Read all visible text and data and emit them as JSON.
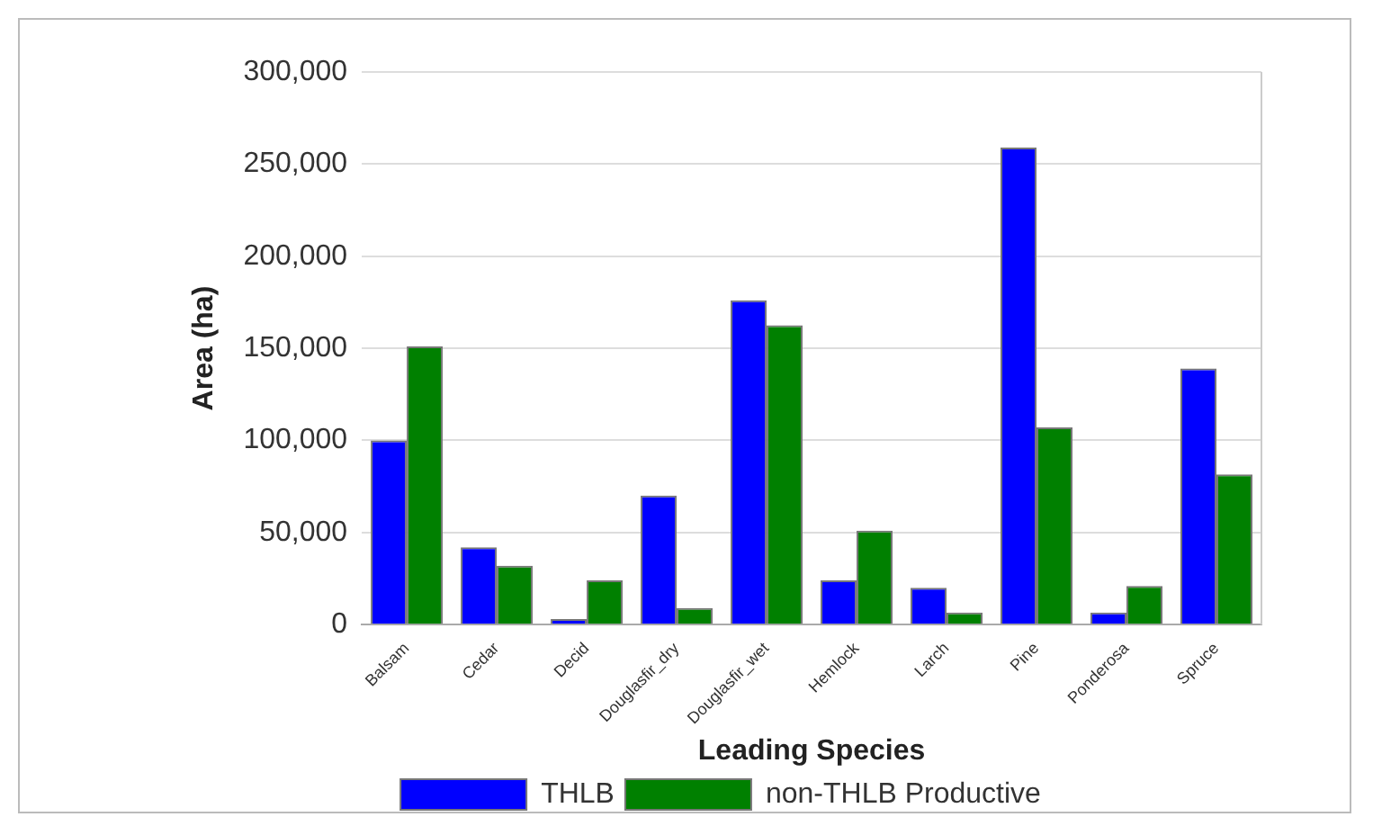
{
  "chart_data": {
    "type": "bar",
    "xlabel": "Leading Species",
    "ylabel": "Area (ha)",
    "categories": [
      "Balsam",
      "Cedar",
      "Decid",
      "Douglasfir_dry",
      "Douglasfir_wet",
      "Hemlock",
      "Larch",
      "Pine",
      "Ponderosa",
      "Spruce"
    ],
    "series": [
      {
        "name": "THLB",
        "color": "#0000ff",
        "values": [
          100000,
          42000,
          3000,
          70000,
          176000,
          24000,
          20000,
          259000,
          6500,
          139000
        ]
      },
      {
        "name": "non-THLB Productive",
        "color": "#008000",
        "values": [
          151000,
          32000,
          24000,
          9000,
          162500,
          51000,
          6500,
          107000,
          21000,
          81500
        ]
      }
    ],
    "ylim": [
      0,
      300000
    ],
    "yticks": [
      {
        "value": 0,
        "label": "0"
      },
      {
        "value": 50000,
        "label": "50,000"
      },
      {
        "value": 100000,
        "label": "100,000"
      },
      {
        "value": 150000,
        "label": "150,000"
      },
      {
        "value": 200000,
        "label": "200,000"
      },
      {
        "value": 250000,
        "label": "250,000"
      },
      {
        "value": 300000,
        "label": "300,000"
      }
    ],
    "grid": "y",
    "legend": "bottom"
  }
}
